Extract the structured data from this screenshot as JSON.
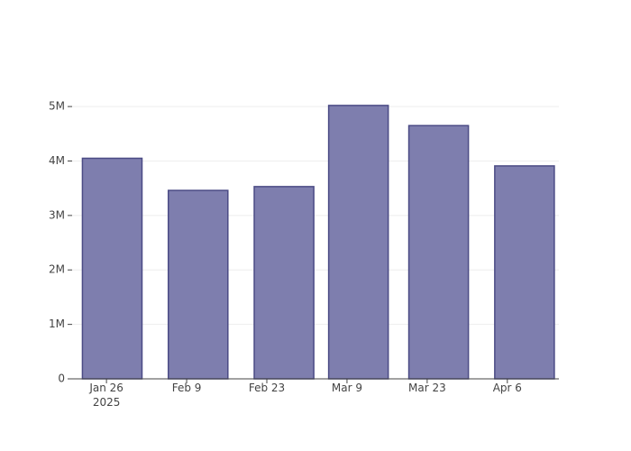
{
  "chart_data": {
    "type": "bar",
    "x": [
      "2025-01-27",
      "2025-02-11",
      "2025-02-26",
      "2025-03-11",
      "2025-03-25",
      "2025-04-09"
    ],
    "values": [
      4050000,
      3460000,
      3530000,
      5020000,
      4650000,
      3910000
    ],
    "color": "#7e7eae",
    "line_color": "#4b4b85",
    "xlim": [
      "2025-01-20",
      "2025-04-15"
    ],
    "xticks": [
      {
        "value": "2025-01-26",
        "label": "Jan 26\n2025"
      },
      {
        "value": "2025-02-09",
        "label": "Feb 9"
      },
      {
        "value": "2025-02-23",
        "label": "Feb 23"
      },
      {
        "value": "2025-03-09",
        "label": "Mar 9"
      },
      {
        "value": "2025-03-23",
        "label": "Mar 23"
      },
      {
        "value": "2025-04-06",
        "label": "Apr 6"
      }
    ],
    "ylim": [
      0,
      5300000
    ],
    "yticks": [
      0,
      {
        "value": 1000000,
        "label": "1M"
      },
      {
        "value": 2000000,
        "label": "2M"
      },
      {
        "value": 3000000,
        "label": "3M"
      },
      {
        "value": 4000000,
        "label": "4M"
      },
      {
        "value": 5000000,
        "label": "5M"
      }
    ],
    "grid": true
  }
}
